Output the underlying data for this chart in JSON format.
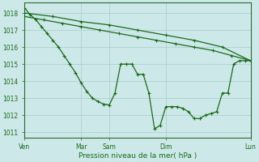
{
  "title": "",
  "xlabel": "Pression niveau de la mer( hPa )",
  "bg_color": "#cce8e8",
  "grid_color": "#aacccc",
  "line_color": "#1a6b1a",
  "ylim": [
    1010.7,
    1018.6
  ],
  "yticks": [
    1011,
    1012,
    1013,
    1014,
    1015,
    1016,
    1017,
    1018
  ],
  "xlim": [
    0,
    120
  ],
  "xtick_positions": [
    0,
    30,
    45,
    75,
    120
  ],
  "xtick_labels": [
    "Ven",
    "Mar",
    "Sam",
    "Dim",
    "Lun"
  ],
  "line1_x": [
    0,
    3,
    6,
    9,
    12,
    15,
    18,
    21,
    24,
    27,
    30,
    33,
    36,
    39,
    42,
    45,
    48,
    51,
    54,
    57,
    60,
    63,
    66,
    69,
    72,
    75,
    78,
    81,
    84,
    87,
    90,
    93,
    96,
    99,
    102,
    105,
    108,
    111,
    114,
    117,
    120
  ],
  "line1_y": [
    1018.3,
    1017.9,
    1017.6,
    1017.2,
    1016.8,
    1016.4,
    1016.0,
    1015.5,
    1015.0,
    1014.5,
    1013.9,
    1013.4,
    1013.0,
    1012.8,
    1012.65,
    1012.6,
    1013.3,
    1015.0,
    1015.0,
    1015.0,
    1014.4,
    1014.4,
    1013.3,
    1011.2,
    1011.4,
    1012.5,
    1012.5,
    1012.5,
    1012.4,
    1012.2,
    1011.8,
    1011.8,
    1012.0,
    1012.1,
    1012.2,
    1013.3,
    1013.3,
    1015.0,
    1015.2,
    1015.2,
    1015.2
  ],
  "line2_x": [
    0,
    10,
    20,
    30,
    40,
    50,
    60,
    70,
    80,
    90,
    100,
    110,
    120
  ],
  "line2_y": [
    1017.8,
    1017.6,
    1017.4,
    1017.2,
    1017.0,
    1016.8,
    1016.6,
    1016.4,
    1016.2,
    1016.0,
    1015.8,
    1015.5,
    1015.2
  ],
  "line3_x": [
    0,
    15,
    30,
    45,
    60,
    75,
    90,
    105,
    120
  ],
  "line3_y": [
    1018.0,
    1017.8,
    1017.5,
    1017.3,
    1017.0,
    1016.7,
    1016.4,
    1016.0,
    1015.2
  ]
}
